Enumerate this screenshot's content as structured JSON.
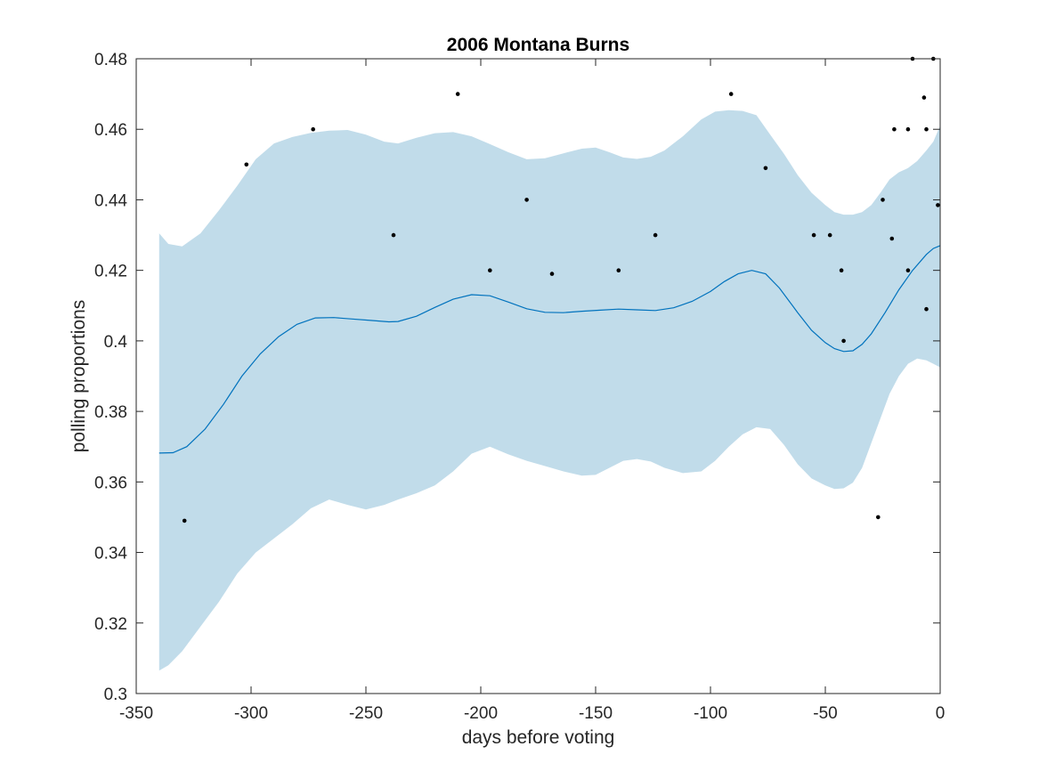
{
  "chart_data": {
    "type": "line",
    "title": "2006 Montana Burns",
    "xlabel": "days before voting",
    "ylabel": "polling proportions",
    "xlim": [
      -350,
      0
    ],
    "ylim": [
      0.3,
      0.48
    ],
    "xticks": [
      -350,
      -300,
      -250,
      -200,
      -150,
      -100,
      -50,
      0
    ],
    "xtick_labels": [
      "-350",
      "-300",
      "-250",
      "-200",
      "-150",
      "-100",
      "-50",
      "0"
    ],
    "yticks": [
      0.3,
      0.32,
      0.34,
      0.36,
      0.38,
      0.4,
      0.42,
      0.44,
      0.46,
      0.48
    ],
    "ytick_labels": [
      "0.3",
      "0.32",
      "0.34",
      "0.36",
      "0.38",
      "0.4",
      "0.42",
      "0.44",
      "0.46",
      "0.48"
    ],
    "grid": false,
    "colors": {
      "band": "#c1dcea",
      "mean_line": "#0072bd",
      "points": "#000000",
      "axis": "#262626"
    },
    "series": [
      {
        "kind": "band",
        "x": [
          -340,
          -336,
          -330,
          -322,
          -314,
          -306,
          -298,
          -290,
          -282,
          -274,
          -266,
          -258,
          -250,
          -242,
          -236,
          -228,
          -220,
          -212,
          -204,
          -196,
          -188,
          -180,
          -172,
          -164,
          -156,
          -150,
          -144,
          -138,
          -132,
          -126,
          -120,
          -112,
          -104,
          -98,
          -92,
          -86,
          -80,
          -74,
          -68,
          -62,
          -56,
          -50,
          -46,
          -42,
          -38,
          -34,
          -30,
          -26,
          -22,
          -18,
          -14,
          -10,
          -6,
          -3,
          0
        ],
        "upper": [
          0.4305,
          0.4275,
          0.4268,
          0.4305,
          0.437,
          0.444,
          0.4515,
          0.456,
          0.4578,
          0.459,
          0.4596,
          0.4598,
          0.4585,
          0.4565,
          0.456,
          0.4576,
          0.4589,
          0.4592,
          0.458,
          0.4558,
          0.4535,
          0.4515,
          0.4518,
          0.4532,
          0.4545,
          0.4548,
          0.4535,
          0.452,
          0.4516,
          0.4522,
          0.454,
          0.458,
          0.4628,
          0.465,
          0.4654,
          0.4652,
          0.464,
          0.4585,
          0.453,
          0.447,
          0.442,
          0.4385,
          0.4365,
          0.4358,
          0.4358,
          0.4365,
          0.4385,
          0.442,
          0.4458,
          0.4478,
          0.449,
          0.451,
          0.454,
          0.4565,
          0.461
        ],
        "lower": [
          0.3065,
          0.308,
          0.312,
          0.319,
          0.326,
          0.334,
          0.34,
          0.344,
          0.348,
          0.3525,
          0.355,
          0.3535,
          0.3522,
          0.3535,
          0.355,
          0.3568,
          0.359,
          0.363,
          0.368,
          0.37,
          0.3678,
          0.366,
          0.3645,
          0.363,
          0.3618,
          0.362,
          0.364,
          0.366,
          0.3665,
          0.3658,
          0.364,
          0.3625,
          0.363,
          0.366,
          0.37,
          0.3735,
          0.3755,
          0.375,
          0.3705,
          0.365,
          0.361,
          0.359,
          0.358,
          0.3582,
          0.3598,
          0.364,
          0.371,
          0.378,
          0.385,
          0.39,
          0.3935,
          0.395,
          0.3945,
          0.3935,
          0.3925
        ]
      },
      {
        "kind": "mean",
        "x": [
          -340,
          -334,
          -328,
          -320,
          -312,
          -304,
          -296,
          -288,
          -280,
          -272,
          -264,
          -256,
          -248,
          -240,
          -236,
          -228,
          -220,
          -212,
          -204,
          -196,
          -188,
          -180,
          -172,
          -164,
          -156,
          -148,
          -140,
          -132,
          -124,
          -116,
          -108,
          -100,
          -94,
          -88,
          -82,
          -76,
          -70,
          -62,
          -56,
          -50,
          -46,
          -42,
          -38,
          -34,
          -30,
          -24,
          -18,
          -12,
          -6,
          -3,
          0
        ],
        "y": [
          0.3682,
          0.3683,
          0.37,
          0.375,
          0.382,
          0.39,
          0.3963,
          0.4012,
          0.4047,
          0.4065,
          0.4066,
          0.4062,
          0.4058,
          0.4054,
          0.4055,
          0.407,
          0.4095,
          0.4118,
          0.4131,
          0.4128,
          0.411,
          0.4091,
          0.4081,
          0.408,
          0.4084,
          0.4087,
          0.409,
          0.4088,
          0.4086,
          0.4094,
          0.4112,
          0.414,
          0.4168,
          0.419,
          0.42,
          0.419,
          0.415,
          0.408,
          0.403,
          0.3995,
          0.3978,
          0.397,
          0.3972,
          0.399,
          0.402,
          0.408,
          0.4145,
          0.42,
          0.4245,
          0.4262,
          0.427
        ]
      },
      {
        "kind": "points",
        "points": [
          [
            -329,
            0.349
          ],
          [
            -302,
            0.45
          ],
          [
            -273,
            0.46
          ],
          [
            -238,
            0.43
          ],
          [
            -210,
            0.47
          ],
          [
            -196,
            0.42
          ],
          [
            -180,
            0.44
          ],
          [
            -169,
            0.419
          ],
          [
            -140,
            0.42
          ],
          [
            -124,
            0.43
          ],
          [
            -91,
            0.47
          ],
          [
            -76,
            0.449
          ],
          [
            -55,
            0.43
          ],
          [
            -48,
            0.43
          ],
          [
            -43,
            0.42
          ],
          [
            -42,
            0.4
          ],
          [
            -27,
            0.35
          ],
          [
            -25,
            0.44
          ],
          [
            -21,
            0.429
          ],
          [
            -20,
            0.46
          ],
          [
            -14,
            0.46
          ],
          [
            -14,
            0.42
          ],
          [
            -12,
            0.48
          ],
          [
            -7,
            0.469
          ],
          [
            -6,
            0.46
          ],
          [
            -6,
            0.409
          ],
          [
            -3,
            0.48
          ],
          [
            -1,
            0.4385
          ]
        ]
      }
    ]
  }
}
